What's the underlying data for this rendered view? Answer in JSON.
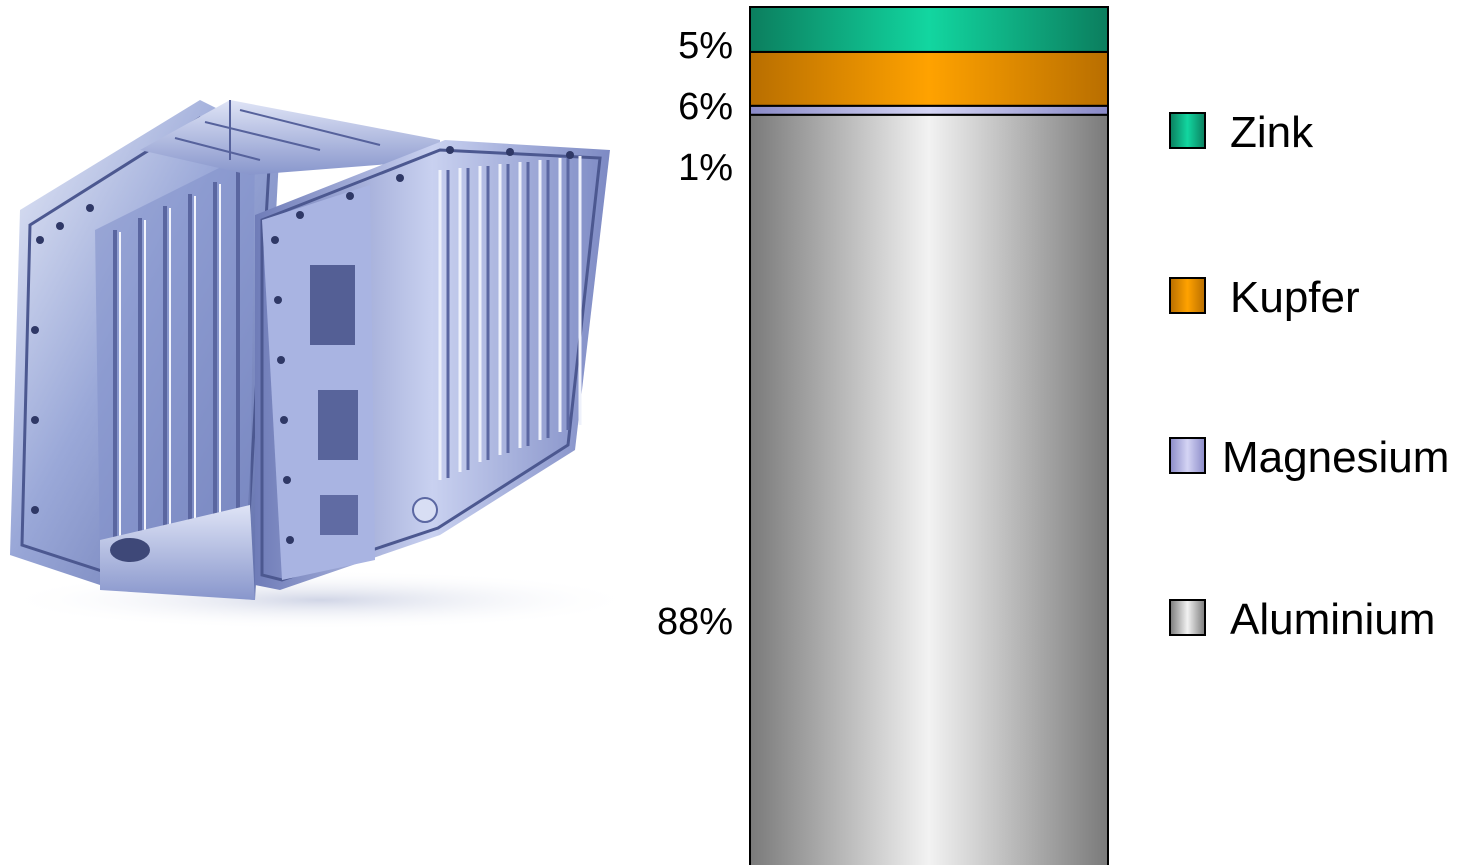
{
  "chart_data": {
    "type": "bar",
    "stacked": true,
    "orientation": "vertical",
    "categories": [
      ""
    ],
    "series": [
      {
        "name": "Aluminium",
        "values": [
          88
        ],
        "label": "88%",
        "color": "#c8c8c8"
      },
      {
        "name": "Magnesium",
        "values": [
          1
        ],
        "label": "1%",
        "color": "#b4b4e6"
      },
      {
        "name": "Kupfer",
        "values": [
          6
        ],
        "label": "6%",
        "color": "#f09a00"
      },
      {
        "name": "Zink",
        "values": [
          5
        ],
        "label": "5%",
        "color": "#0fb486"
      }
    ],
    "legend": {
      "placement": "right",
      "order": [
        "Zink",
        "Kupfer",
        "Magnesium",
        "Aluminium"
      ]
    },
    "ylim": [
      0,
      100
    ],
    "grid": false,
    "title": "",
    "xlabel": "",
    "ylabel": ""
  },
  "image": {
    "icon": "aluminium-housing-photo-icon"
  }
}
